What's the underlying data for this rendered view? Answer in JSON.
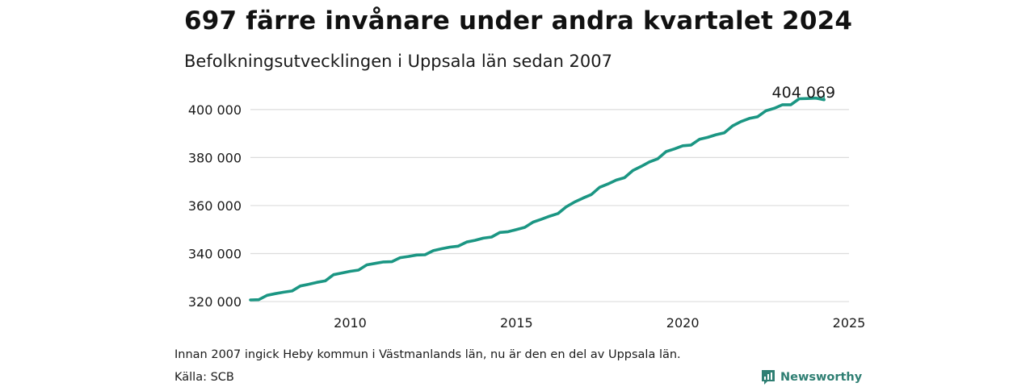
{
  "title": "697 färre invånare under andra kvartalet 2024",
  "subtitle": "Befolkningsutvecklingen i Uppsala län sedan 2007",
  "note": "Innan 2007 ingick Heby kommun i Västmanlands län, nu är den en del av Uppsala län.",
  "source": "Källa: SCB",
  "brand": {
    "name": "Newsworthy",
    "icon": "newsworthy-logo-icon",
    "color": "#2f7f73"
  },
  "colors": {
    "line": "#1b9683",
    "grid": "#dcdcdc"
  },
  "chart_data": {
    "type": "line",
    "title": "697 färre invånare under andra kvartalet 2024",
    "subtitle": "Befolkningsutvecklingen i Uppsala län sedan 2007",
    "xlabel": "",
    "ylabel": "",
    "xlim": [
      2007,
      2025
    ],
    "ylim": [
      318000,
      406000
    ],
    "x_ticks": [
      2010,
      2015,
      2020,
      2025
    ],
    "x_tick_labels": [
      "2010",
      "2015",
      "2020",
      "2025"
    ],
    "y_ticks": [
      320000,
      340000,
      360000,
      380000,
      400000
    ],
    "y_tick_labels": [
      "320 000",
      "340 000",
      "360 000",
      "380 000",
      "400 000"
    ],
    "grid": "horizontal",
    "end_label": "404 069",
    "series": [
      {
        "x": [
          2007.0,
          2007.25,
          2007.5,
          2007.75,
          2008.0,
          2008.25,
          2008.5,
          2008.75,
          2009.0,
          2009.25,
          2009.5,
          2009.75,
          2010.0,
          2010.25,
          2010.5,
          2010.75,
          2011.0,
          2011.25,
          2011.5,
          2011.75,
          2012.0,
          2012.25,
          2012.5,
          2012.75,
          2013.0,
          2013.25,
          2013.5,
          2013.75,
          2014.0,
          2014.25,
          2014.5,
          2014.75,
          2015.0,
          2015.25,
          2015.5,
          2015.75,
          2016.0,
          2016.25,
          2016.5,
          2016.75,
          2017.0,
          2017.25,
          2017.5,
          2017.75,
          2018.0,
          2018.25,
          2018.5,
          2018.75,
          2019.0,
          2019.25,
          2019.5,
          2019.75,
          2020.0,
          2020.25,
          2020.5,
          2020.75,
          2021.0,
          2021.25,
          2021.5,
          2021.75,
          2022.0,
          2022.25,
          2022.5,
          2022.75,
          2023.0,
          2023.25,
          2023.5,
          2023.75,
          2024.0,
          2024.25
        ],
        "y": [
          320700,
          320800,
          322600,
          323300,
          323900,
          324400,
          326500,
          327200,
          328000,
          328600,
          331200,
          331900,
          332600,
          333100,
          335300,
          335900,
          336500,
          336600,
          338300,
          338800,
          339400,
          339500,
          341200,
          342000,
          342700,
          343100,
          344800,
          345500,
          346400,
          346900,
          348800,
          349100,
          350000,
          350900,
          353100,
          354300,
          355600,
          356700,
          359500,
          361500,
          363100,
          364600,
          367600,
          369000,
          370600,
          371600,
          374600,
          376300,
          378200,
          379500,
          382500,
          383600,
          384900,
          385200,
          387600,
          388400,
          389500,
          390300,
          393200,
          395000,
          396300,
          397000,
          399500,
          400500,
          402000,
          402000,
          404500,
          404600,
          404766,
          404069
        ]
      }
    ]
  }
}
